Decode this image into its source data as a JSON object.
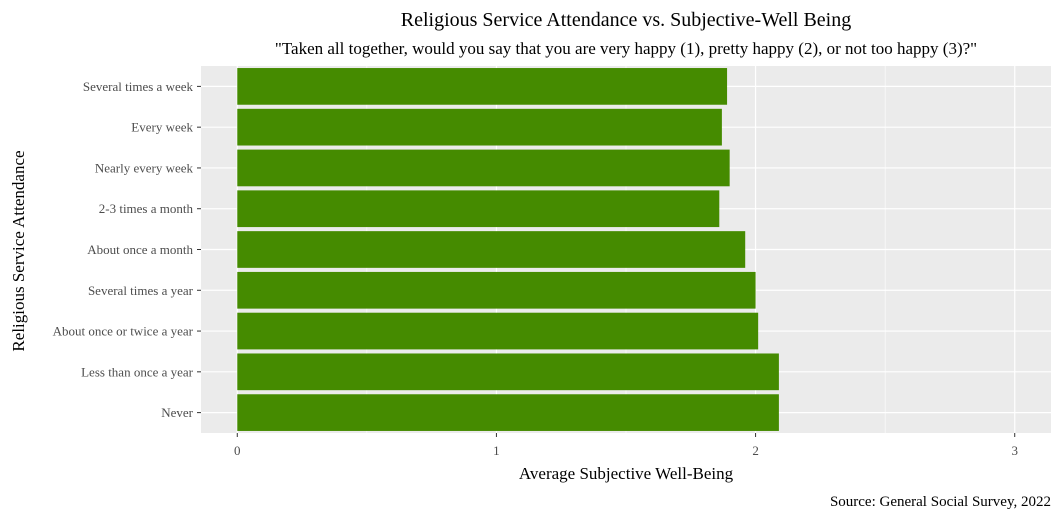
{
  "chart_data": {
    "type": "bar",
    "orientation": "horizontal",
    "title": "Religious Service Attendance vs. Subjective-Well Being",
    "subtitle": "\"Taken all together, would you say that you are very happy (1), pretty happy (2), or not too happy (3)?\"",
    "xlabel": "Average Subjective Well-Being",
    "ylabel": "Religious Service Attendance",
    "caption": "Source: General Social Survey, 2022",
    "categories": [
      "Several times a week",
      "Every week",
      "Nearly every week",
      "2-3 times a month",
      "About once a month",
      "Several times a year",
      "About once or twice a year",
      "Less than once a year",
      "Never"
    ],
    "values": [
      1.89,
      1.87,
      1.9,
      1.86,
      1.96,
      2.0,
      2.01,
      2.09,
      2.09
    ],
    "xlim": [
      -0.14,
      3.14
    ],
    "x_ticks": [
      "0",
      "1",
      "2",
      "3"
    ],
    "x_tick_values": [
      0,
      1,
      2,
      3
    ],
    "grid": true,
    "legend": "none",
    "colors": {
      "bar": "#458B00",
      "panel": "#EBEBEB",
      "grid": "#FFFFFF"
    }
  }
}
